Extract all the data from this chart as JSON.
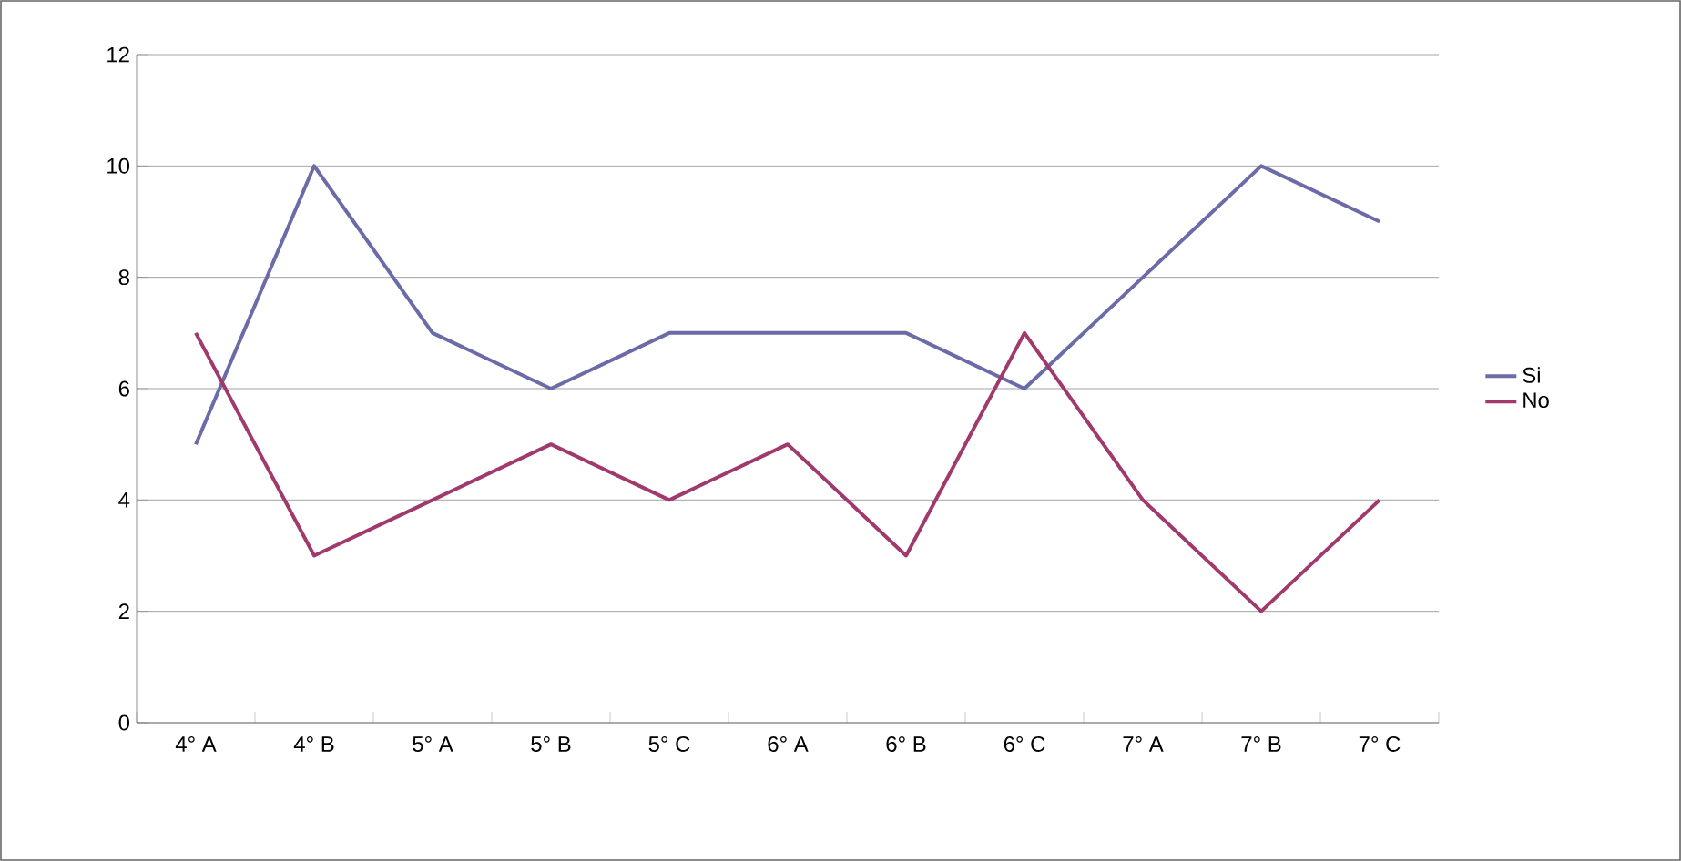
{
  "chart_data": {
    "type": "line",
    "categories": [
      "4° A",
      "4° B",
      "5° A",
      "5° B",
      "5° C",
      "6° A",
      "6° B",
      "6° C",
      "7° A",
      "7° B",
      "7° C"
    ],
    "series": [
      {
        "name": "Si",
        "color": "#6b6ba8",
        "values": [
          5,
          10,
          7,
          6,
          7,
          7,
          7,
          6,
          8,
          10,
          9
        ]
      },
      {
        "name": "No",
        "color": "#a03a6c",
        "values": [
          7,
          3,
          4,
          5,
          4,
          5,
          3,
          7,
          4,
          2,
          4
        ]
      }
    ],
    "ylim": [
      0,
      12
    ],
    "yticks": [
      0,
      2,
      4,
      6,
      8,
      10,
      12
    ],
    "grid": "y",
    "legend": "right",
    "marker": "none",
    "line_style": "solid"
  }
}
